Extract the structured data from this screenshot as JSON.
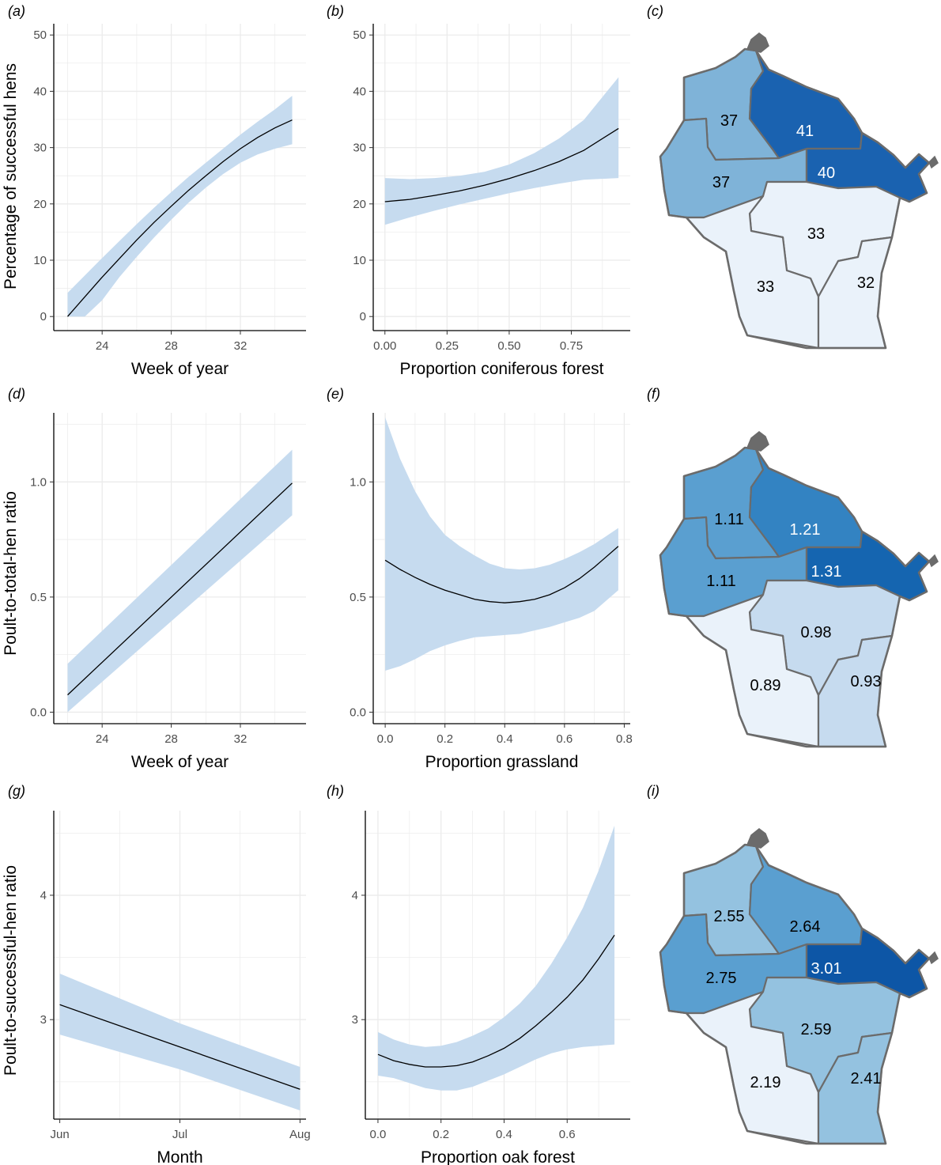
{
  "colors": {
    "ribbon": "#c6dbef",
    "line": "#000000",
    "grid": "#ebebeb",
    "axis": "#000000",
    "map_border": "#6b6b6b",
    "map_scale": [
      "#eaf2fa",
      "#c6dbef",
      "#9ecae1",
      "#6baed6",
      "#4292c6",
      "#2171b5",
      "#1565b0",
      "#0d56a6"
    ]
  },
  "y_titles": {
    "row1": "Percentage of successful hens",
    "row2": "Poult-to-total-hen ratio",
    "row3": "Poult-to-successful-hen ratio"
  },
  "chart_data": [
    {
      "id": "a",
      "panel_label": "(a)",
      "type": "line",
      "xlabel": "Week of year",
      "ylabel": "Percentage of successful hens",
      "xlim": [
        21.2,
        35.8
      ],
      "ylim": [
        -2.5,
        52
      ],
      "xticks": [
        24,
        28,
        32
      ],
      "xtick_labels": [
        "24",
        "28",
        "32"
      ],
      "yticks": [
        0,
        10,
        20,
        30,
        40,
        50
      ],
      "ytick_labels": [
        "0",
        "10",
        "20",
        "30",
        "40",
        "50"
      ],
      "series": [
        {
          "name": "fit",
          "x": [
            22,
            23,
            24,
            25,
            26,
            27,
            28,
            29,
            30,
            31,
            32,
            33,
            34,
            35
          ],
          "y": [
            0,
            3.5,
            7.0,
            10.3,
            13.6,
            16.7,
            19.6,
            22.4,
            25.0,
            27.5,
            29.8,
            31.8,
            33.5,
            34.9
          ],
          "lower": [
            0,
            0,
            2.9,
            7.0,
            10.6,
            14.0,
            17.2,
            20.2,
            22.9,
            25.3,
            27.3,
            28.8,
            29.8,
            30.6
          ],
          "upper": [
            4.2,
            7.3,
            10.4,
            13.4,
            16.4,
            19.3,
            22.1,
            24.8,
            27.3,
            29.8,
            32.3,
            34.6,
            36.8,
            39.2
          ]
        }
      ]
    },
    {
      "id": "b",
      "panel_label": "(b)",
      "type": "line",
      "xlabel": "Proportion coniferous forest",
      "ylabel": "",
      "xlim": [
        -0.047,
        0.987
      ],
      "ylim": [
        -2.5,
        52
      ],
      "xticks": [
        0,
        0.25,
        0.5,
        0.75
      ],
      "xtick_labels": [
        "0.00",
        "0.25",
        "0.50",
        "0.75"
      ],
      "yticks": [
        0,
        10,
        20,
        30,
        40,
        50
      ],
      "ytick_labels": [
        "0",
        "10",
        "20",
        "30",
        "40",
        "50"
      ],
      "series": [
        {
          "name": "fit",
          "x": [
            0,
            0.1,
            0.2,
            0.3,
            0.4,
            0.5,
            0.6,
            0.7,
            0.8,
            0.94
          ],
          "y": [
            20.4,
            20.8,
            21.5,
            22.3,
            23.3,
            24.5,
            25.9,
            27.5,
            29.5,
            33.4
          ],
          "lower": [
            16.3,
            17.6,
            18.8,
            19.9,
            20.9,
            21.9,
            22.8,
            23.6,
            24.3,
            24.6
          ],
          "upper": [
            24.6,
            24.4,
            24.6,
            25.0,
            25.7,
            27.0,
            29.0,
            31.6,
            34.9,
            42.5
          ]
        }
      ]
    },
    {
      "id": "d",
      "panel_label": "(d)",
      "type": "line",
      "xlabel": "Week of year",
      "ylabel": "Poult-to-total-hen ratio",
      "xlim": [
        21.2,
        35.8
      ],
      "ylim": [
        -0.05,
        1.3
      ],
      "xticks": [
        24,
        28,
        32
      ],
      "xtick_labels": [
        "24",
        "28",
        "32"
      ],
      "yticks": [
        0,
        0.5,
        1.0
      ],
      "ytick_labels": [
        "0.0",
        "0.5",
        "1.0"
      ],
      "series": [
        {
          "name": "fit",
          "x": [
            22,
            35
          ],
          "y": [
            0.075,
            0.995
          ],
          "lower": [
            0,
            0.855
          ],
          "upper": [
            0.21,
            1.14
          ]
        }
      ]
    },
    {
      "id": "e",
      "panel_label": "(e)",
      "type": "line",
      "xlabel": "Proportion grassland",
      "ylabel": "",
      "xlim": [
        -0.04,
        0.82
      ],
      "ylim": [
        -0.05,
        1.3
      ],
      "xticks": [
        0,
        0.2,
        0.4,
        0.6,
        0.8
      ],
      "xtick_labels": [
        "0.0",
        "0.2",
        "0.4",
        "0.6",
        "0.8"
      ],
      "yticks": [
        0,
        0.5,
        1.0
      ],
      "ytick_labels": [
        "0.0",
        "0.5",
        "1.0"
      ],
      "series": [
        {
          "name": "fit",
          "x": [
            0,
            0.05,
            0.1,
            0.15,
            0.2,
            0.25,
            0.3,
            0.35,
            0.4,
            0.45,
            0.5,
            0.55,
            0.6,
            0.65,
            0.7,
            0.78
          ],
          "y": [
            0.66,
            0.62,
            0.585,
            0.555,
            0.53,
            0.51,
            0.49,
            0.48,
            0.475,
            0.48,
            0.49,
            0.51,
            0.54,
            0.58,
            0.63,
            0.72
          ],
          "lower": [
            0.18,
            0.2,
            0.23,
            0.265,
            0.29,
            0.31,
            0.325,
            0.33,
            0.335,
            0.34,
            0.355,
            0.37,
            0.39,
            0.41,
            0.44,
            0.53
          ],
          "upper": [
            1.28,
            1.1,
            0.96,
            0.85,
            0.77,
            0.72,
            0.68,
            0.645,
            0.625,
            0.62,
            0.625,
            0.64,
            0.665,
            0.695,
            0.73,
            0.8
          ]
        }
      ]
    },
    {
      "id": "g",
      "panel_label": "(g)",
      "type": "line",
      "xlabel": "Month",
      "ylabel": "Poult-to-successful-hen ratio",
      "xlim": [
        -0.05,
        2.05
      ],
      "ylim": [
        2.2,
        4.68
      ],
      "xticks": [
        0,
        1,
        2
      ],
      "xtick_labels": [
        "Jun",
        "Jul",
        "Aug"
      ],
      "yticks": [
        3,
        4
      ],
      "ytick_labels": [
        "3",
        "4"
      ],
      "series": [
        {
          "name": "fit",
          "x": [
            0,
            1,
            2
          ],
          "y": [
            3.12,
            2.78,
            2.44
          ],
          "lower": [
            2.88,
            2.6,
            2.27
          ],
          "upper": [
            3.37,
            2.97,
            2.62
          ]
        }
      ]
    },
    {
      "id": "h",
      "panel_label": "(h)",
      "type": "line",
      "xlabel": "Proportion oak forest",
      "ylabel": "",
      "xlim": [
        -0.04,
        0.8
      ],
      "ylim": [
        2.2,
        4.68
      ],
      "xticks": [
        0,
        0.2,
        0.4,
        0.6
      ],
      "xtick_labels": [
        "0.0",
        "0.2",
        "0.4",
        "0.6"
      ],
      "yticks": [
        3,
        4
      ],
      "ytick_labels": [
        "3",
        "4"
      ],
      "series": [
        {
          "name": "fit",
          "x": [
            0,
            0.05,
            0.1,
            0.15,
            0.2,
            0.25,
            0.3,
            0.35,
            0.4,
            0.45,
            0.5,
            0.55,
            0.6,
            0.65,
            0.7,
            0.75
          ],
          "y": [
            2.72,
            2.67,
            2.64,
            2.62,
            2.62,
            2.63,
            2.66,
            2.71,
            2.77,
            2.85,
            2.95,
            3.06,
            3.18,
            3.32,
            3.49,
            3.68
          ],
          "lower": [
            2.55,
            2.53,
            2.49,
            2.45,
            2.43,
            2.43,
            2.46,
            2.51,
            2.56,
            2.62,
            2.68,
            2.73,
            2.76,
            2.78,
            2.79,
            2.8
          ],
          "upper": [
            2.9,
            2.84,
            2.8,
            2.78,
            2.79,
            2.82,
            2.87,
            2.93,
            3.02,
            3.13,
            3.27,
            3.45,
            3.66,
            3.9,
            4.2,
            4.56
          ]
        }
      ]
    }
  ],
  "maps": [
    {
      "id": "c",
      "panel_label": "(c)",
      "regions": [
        {
          "name": "northwest",
          "label": "37",
          "value": 37,
          "fill": "#7fb3d8",
          "text_color": "#000000"
        },
        {
          "name": "north",
          "label": "41",
          "value": 41,
          "fill": "#1a62b0",
          "text_color": "#ffffff"
        },
        {
          "name": "west-central",
          "label": "37",
          "value": 37,
          "fill": "#7fb3d8",
          "text_color": "#000000"
        },
        {
          "name": "northeast",
          "label": "40",
          "value": 40,
          "fill": "#1a62b0",
          "text_color": "#ffffff"
        },
        {
          "name": "central",
          "label": "33",
          "value": 33,
          "fill": "#eaf2fa",
          "text_color": "#000000"
        },
        {
          "name": "southwest",
          "label": "33",
          "value": 33,
          "fill": "#eaf2fa",
          "text_color": "#000000"
        },
        {
          "name": "southeast",
          "label": "32",
          "value": 32,
          "fill": "#eaf2fa",
          "text_color": "#000000"
        }
      ]
    },
    {
      "id": "f",
      "panel_label": "(f)",
      "regions": [
        {
          "name": "northwest",
          "label": "1.11",
          "value": 1.11,
          "fill": "#5a9fd0",
          "text_color": "#000000"
        },
        {
          "name": "north",
          "label": "1.21",
          "value": 1.21,
          "fill": "#3383c2",
          "text_color": "#ffffff"
        },
        {
          "name": "west-central",
          "label": "1.11",
          "value": 1.11,
          "fill": "#5a9fd0",
          "text_color": "#000000"
        },
        {
          "name": "northeast",
          "label": "1.31",
          "value": 1.31,
          "fill": "#1565b0",
          "text_color": "#ffffff"
        },
        {
          "name": "central",
          "label": "0.98",
          "value": 0.98,
          "fill": "#c6dbef",
          "text_color": "#000000"
        },
        {
          "name": "southwest",
          "label": "0.89",
          "value": 0.89,
          "fill": "#eaf2fa",
          "text_color": "#000000"
        },
        {
          "name": "southeast",
          "label": "0.93",
          "value": 0.93,
          "fill": "#c6dbef",
          "text_color": "#000000"
        }
      ]
    },
    {
      "id": "i",
      "panel_label": "(i)",
      "regions": [
        {
          "name": "northwest",
          "label": "2.55",
          "value": 2.55,
          "fill": "#94c2e0",
          "text_color": "#000000"
        },
        {
          "name": "north",
          "label": "2.64",
          "value": 2.64,
          "fill": "#5a9fd0",
          "text_color": "#000000"
        },
        {
          "name": "west-central",
          "label": "2.75",
          "value": 2.75,
          "fill": "#5a9fd0",
          "text_color": "#000000"
        },
        {
          "name": "northeast",
          "label": "3.01",
          "value": 3.01,
          "fill": "#0d56a6",
          "text_color": "#ffffff"
        },
        {
          "name": "central",
          "label": "2.59",
          "value": 2.59,
          "fill": "#94c2e0",
          "text_color": "#000000"
        },
        {
          "name": "southwest",
          "label": "2.19",
          "value": 2.19,
          "fill": "#eaf2fa",
          "text_color": "#000000"
        },
        {
          "name": "southeast",
          "label": "2.41",
          "value": 2.41,
          "fill": "#94c2e0",
          "text_color": "#000000"
        }
      ]
    }
  ]
}
